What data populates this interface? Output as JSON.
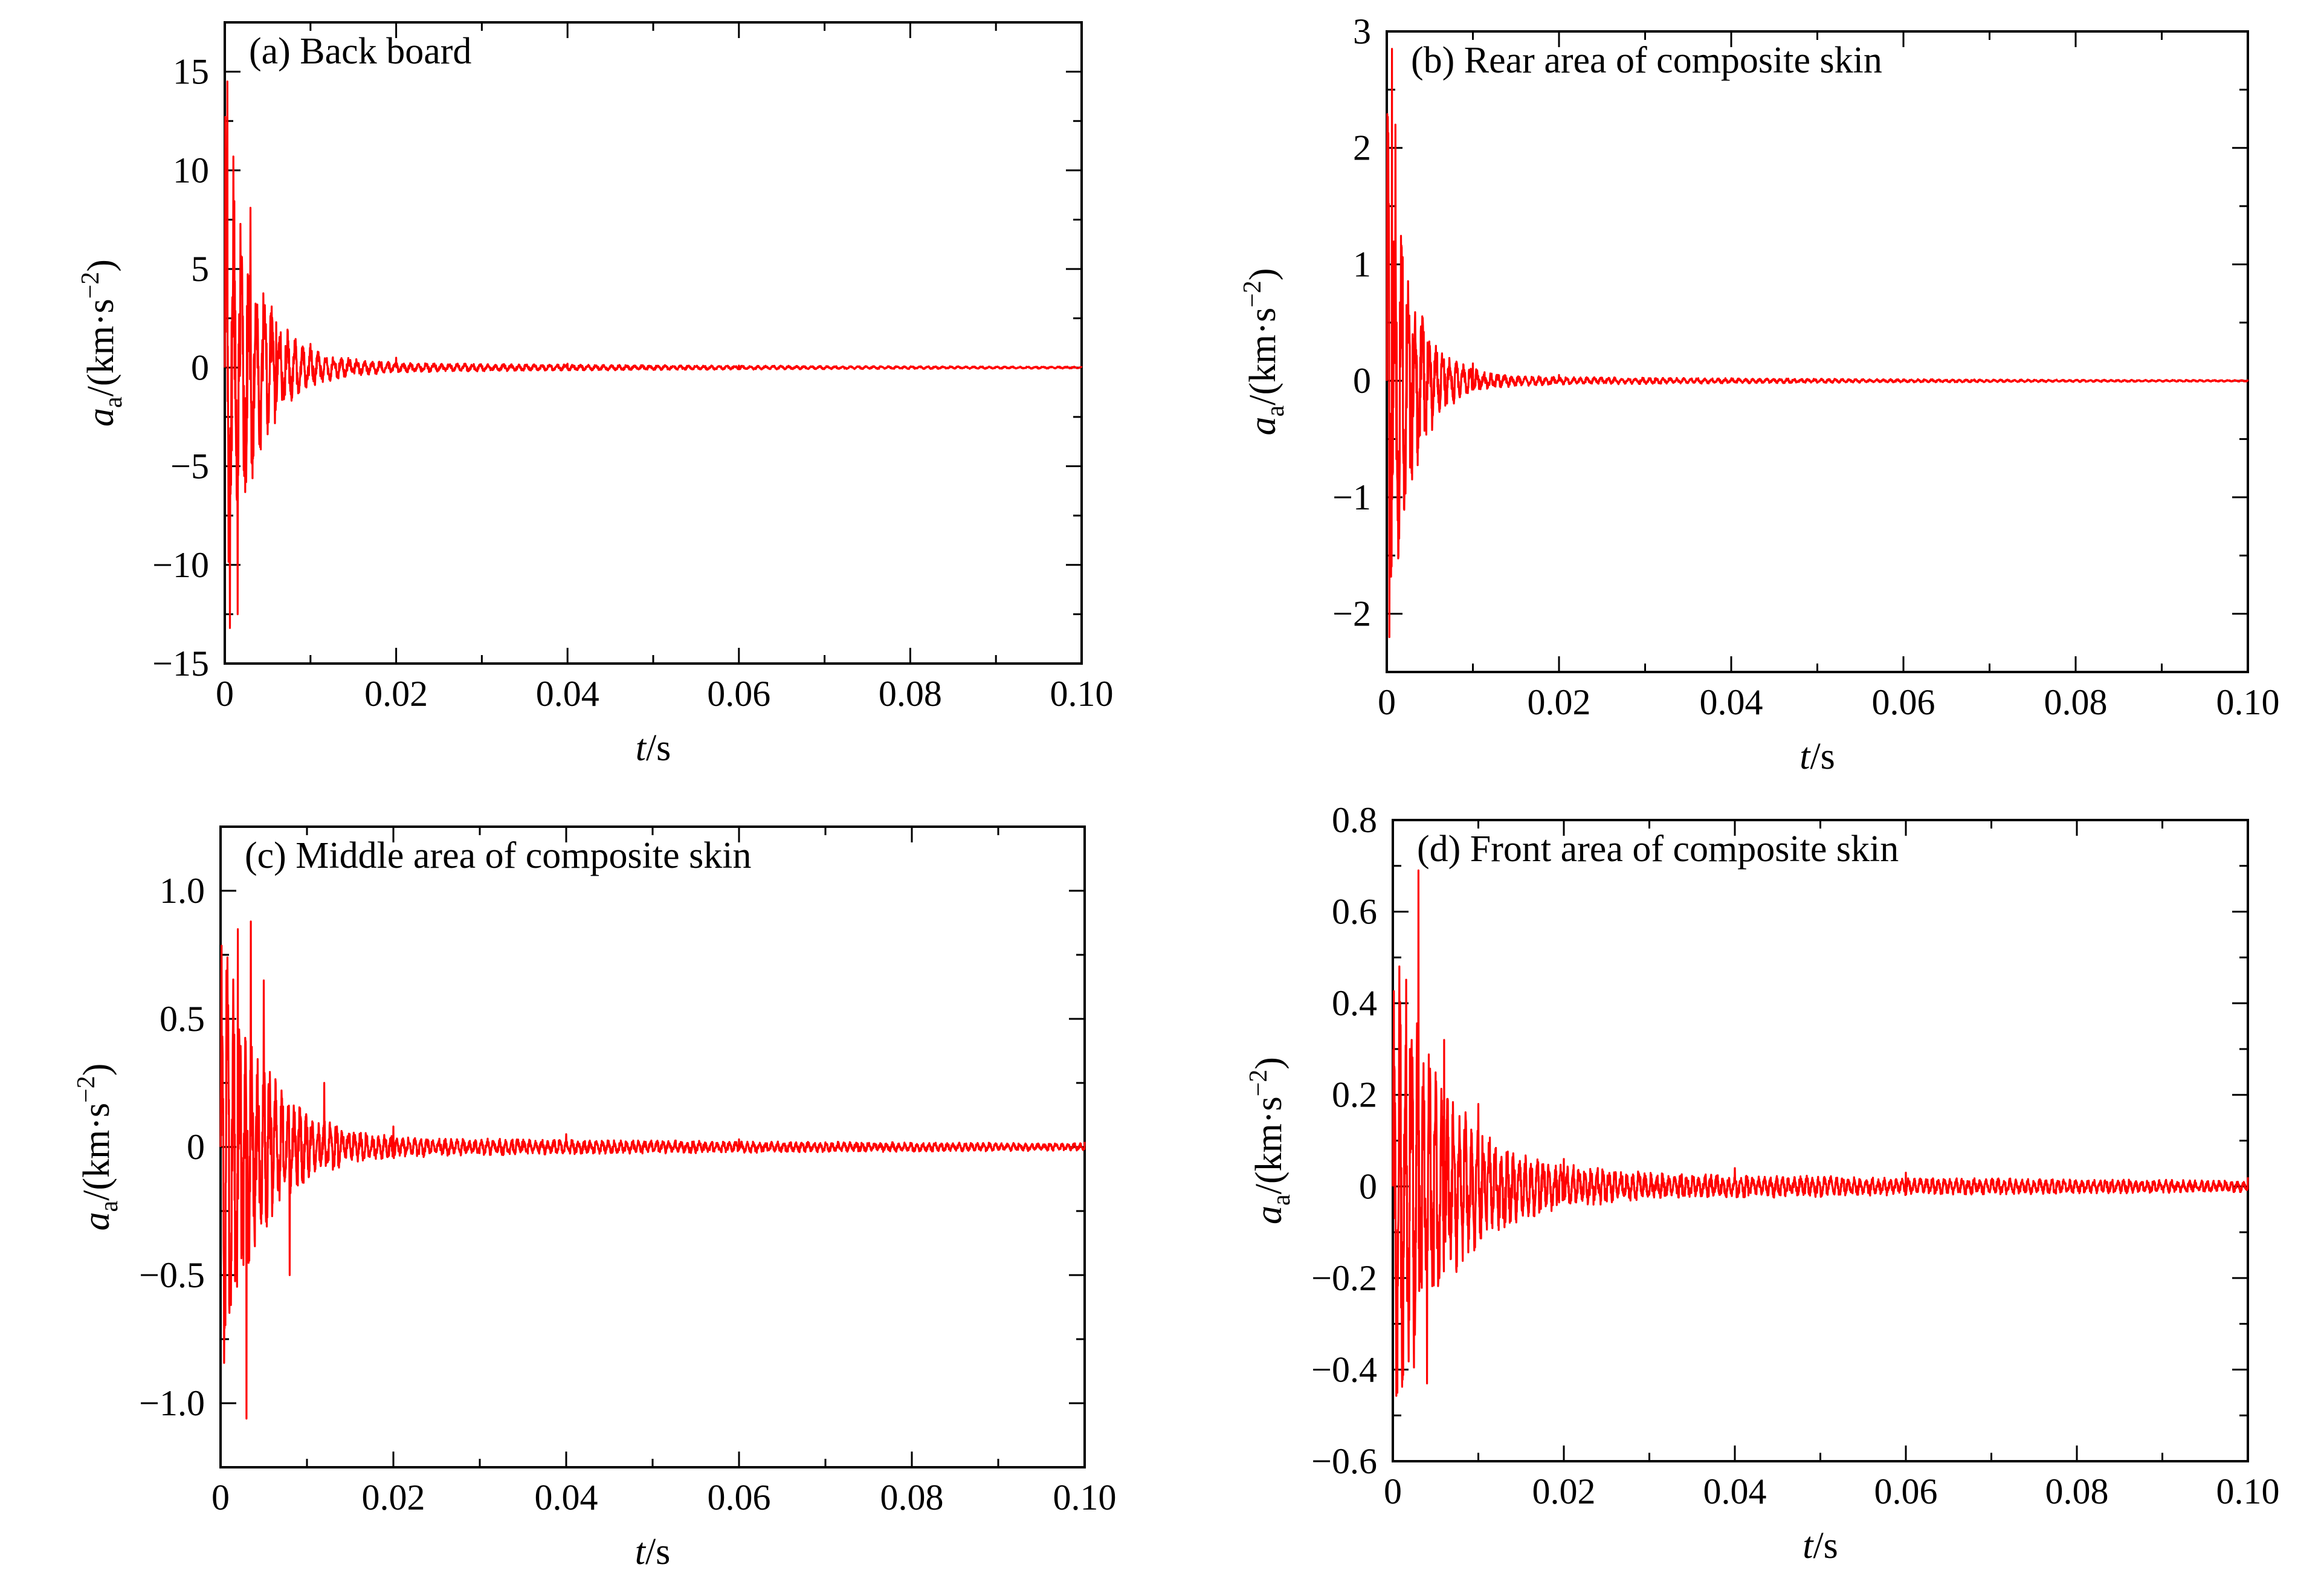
{
  "chart_data": [
    {
      "type": "line",
      "panel_label": "(a)  Back board",
      "xlabel_var": "t",
      "xlabel_unit": "/s",
      "ylabel_var": "a",
      "ylabel_sub": "a",
      "ylabel_unit": "/(km·s",
      "ylabel_exp": "−2",
      "ylabel_close": ")",
      "xlim": [
        0,
        0.1
      ],
      "ylim": [
        -15,
        17.5
      ],
      "xticks": [
        0,
        0.02,
        0.04,
        0.06,
        0.08,
        0.1
      ],
      "xtick_labels": [
        "0",
        "0.02",
        "0.04",
        "0.06",
        "0.08",
        "0.10"
      ],
      "yticks": [
        -15,
        -10,
        -5,
        0,
        5,
        10,
        15
      ],
      "ytick_labels": [
        "−15",
        "−10",
        "−5",
        "0",
        "5",
        "10",
        "15"
      ],
      "line_color": "#ff0000",
      "signal": {
        "amplitude": 14,
        "decay_time": 0.0035,
        "floor": 0.35,
        "floor_decay": 0.05,
        "period": 0.0009,
        "seed": 11
      },
      "series": [
        {
          "x": [
            0,
            0.0003,
            0.0006,
            0.001,
            0.0015,
            0.002,
            0.003,
            0.004,
            0.006,
            0.01,
            0.02,
            0.04,
            0.06,
            0.1
          ],
          "y": [
            0,
            14.5,
            -13.2,
            10.7,
            -12.5,
            5.6,
            8.1,
            -3.2,
            2.3,
            1.2,
            0.5,
            0.2,
            0.1,
            0.0
          ]
        }
      ]
    },
    {
      "type": "line",
      "panel_label": "(b)  Rear area of composite skin",
      "xlabel_var": "t",
      "xlabel_unit": "/s",
      "ylabel_var": "a",
      "ylabel_sub": "a",
      "ylabel_unit": "/(km·s",
      "ylabel_exp": "−2",
      "ylabel_close": ")",
      "xlim": [
        0,
        0.1
      ],
      "ylim": [
        -2.5,
        3
      ],
      "xticks": [
        0,
        0.02,
        0.04,
        0.06,
        0.08,
        0.1
      ],
      "xtick_labels": [
        "0",
        "0.02",
        "0.04",
        "0.06",
        "0.08",
        "0.10"
      ],
      "yticks": [
        -2,
        -1,
        0,
        1,
        2,
        3
      ],
      "ytick_labels": [
        "−2",
        "−1",
        "0",
        "1",
        "2",
        "3"
      ],
      "line_color": "#ff0000",
      "signal": {
        "amplitude": 2.6,
        "decay_time": 0.0028,
        "floor": 0.05,
        "floor_decay": 0.05,
        "period": 0.0008,
        "seed": 23
      },
      "series": [
        {
          "x": [
            0,
            0.0003,
            0.0006,
            0.001,
            0.002,
            0.003,
            0.005,
            0.01,
            0.02,
            0.04,
            0.1
          ],
          "y": [
            0,
            -2.2,
            2.85,
            2.2,
            -1.1,
            0.4,
            0.3,
            0.15,
            0.05,
            0.02,
            0.0
          ]
        }
      ]
    },
    {
      "type": "line",
      "panel_label": "(c)  Middle area of composite skin",
      "xlabel_var": "t",
      "xlabel_unit": "/s",
      "ylabel_var": "a",
      "ylabel_sub": "a",
      "ylabel_unit": "/(km·s",
      "ylabel_exp": "−2",
      "ylabel_close": ")",
      "xlim": [
        0,
        0.1
      ],
      "ylim": [
        -1.25,
        1.25
      ],
      "xticks": [
        0,
        0.02,
        0.04,
        0.06,
        0.08,
        0.1
      ],
      "xtick_labels": [
        "0",
        "0.02",
        "0.04",
        "0.06",
        "0.08",
        "0.10"
      ],
      "yticks": [
        -1,
        -0.5,
        0,
        0.5,
        1
      ],
      "ytick_labels": [
        "−1.0",
        "−0.5",
        "0",
        "0.5",
        "1.0"
      ],
      "line_color": "#ff0000",
      "signal": {
        "amplitude": 0.95,
        "decay_time": 0.0045,
        "floor": 0.045,
        "floor_decay": 0.09,
        "period": 0.0007,
        "seed": 37
      },
      "series": [
        {
          "x": [
            0,
            0.002,
            0.003,
            0.0035,
            0.005,
            0.008,
            0.012,
            0.02,
            0.04,
            0.06,
            0.1
          ],
          "y": [
            0,
            0.85,
            -1.06,
            0.88,
            0.65,
            -0.5,
            0.25,
            0.08,
            0.05,
            0.03,
            0.02
          ]
        }
      ]
    },
    {
      "type": "line",
      "panel_label": "(d) Front area of composite skin",
      "xlabel_var": "t",
      "xlabel_unit": "/s",
      "ylabel_var": "a",
      "ylabel_sub": "a",
      "ylabel_unit": "/(km·s",
      "ylabel_exp": "−2",
      "ylabel_close": ")",
      "xlim": [
        0,
        0.1
      ],
      "ylim": [
        -0.6,
        0.8
      ],
      "xticks": [
        0,
        0.02,
        0.04,
        0.06,
        0.08,
        0.1
      ],
      "xtick_labels": [
        "0",
        "0.02",
        "0.04",
        "0.06",
        "0.08",
        "0.10"
      ],
      "yticks": [
        -0.6,
        -0.4,
        -0.2,
        0,
        0.2,
        0.4,
        0.6,
        0.8
      ],
      "ytick_labels": [
        "−0.6",
        "−0.4",
        "−0.2",
        "0",
        "0.2",
        "0.4",
        "0.6",
        "0.8"
      ],
      "line_color": "#ff0000",
      "signal": {
        "amplitude": 0.55,
        "decay_time": 0.006,
        "floor": 0.04,
        "floor_decay": 0.09,
        "period": 0.0007,
        "seed": 53
      },
      "series": [
        {
          "x": [
            0,
            0.002,
            0.003,
            0.004,
            0.006,
            0.01,
            0.02,
            0.04,
            0.06,
            0.1
          ],
          "y": [
            0,
            0.3,
            0.69,
            -0.43,
            0.32,
            0.18,
            0.06,
            0.04,
            0.03,
            0.02
          ]
        }
      ]
    }
  ]
}
